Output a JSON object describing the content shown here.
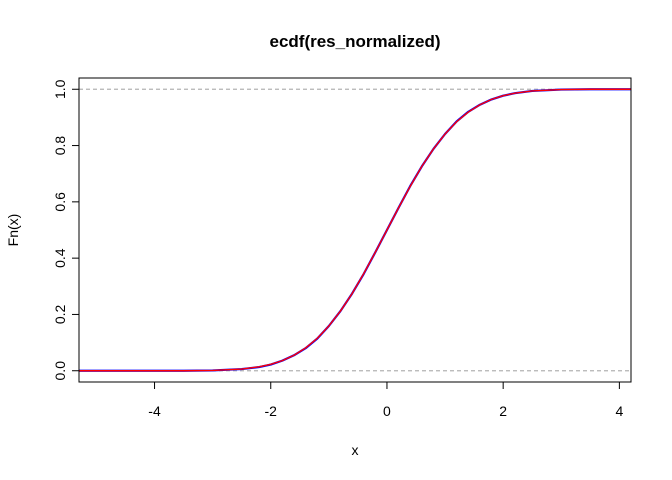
{
  "chart_data": {
    "type": "line",
    "title": "ecdf(res_normalized)",
    "xlabel": "x",
    "ylabel": "Fn(x)",
    "xlim": [
      -5.3,
      4.2
    ],
    "ylim": [
      -0.04,
      1.04
    ],
    "x_ticks": [
      -4,
      -2,
      0,
      2,
      4
    ],
    "y_ticks": [
      0.0,
      0.2,
      0.4,
      0.6,
      0.8,
      1.0
    ],
    "x_tick_labels": [
      "-4",
      "-2",
      "0",
      "2",
      "4"
    ],
    "y_tick_labels": [
      "0.0",
      "0.2",
      "0.4",
      "0.6",
      "0.8",
      "1.0"
    ],
    "reference_lines": [
      0,
      1
    ],
    "reference_line_color": "#b3b3b3",
    "grid": false,
    "series": [
      {
        "color": "#0000ff",
        "x": [
          -5.3,
          -3.5,
          -3.0,
          -2.5,
          -2.2,
          -2.0,
          -1.8,
          -1.6,
          -1.4,
          -1.2,
          -1.0,
          -0.8,
          -0.6,
          -0.4,
          -0.2,
          0.0,
          0.2,
          0.4,
          0.6,
          0.8,
          1.0,
          1.2,
          1.4,
          1.6,
          1.8,
          2.0,
          2.2,
          2.5,
          3.0,
          3.5,
          4.2
        ],
        "y": [
          0.0,
          0.0,
          0.001,
          0.006,
          0.013,
          0.022,
          0.036,
          0.055,
          0.08,
          0.114,
          0.159,
          0.212,
          0.274,
          0.344,
          0.421,
          0.5,
          0.579,
          0.656,
          0.726,
          0.788,
          0.841,
          0.886,
          0.92,
          0.945,
          0.964,
          0.977,
          0.986,
          0.994,
          0.999,
          1.0,
          1.0
        ]
      },
      {
        "color": "#ff0000",
        "x": [
          -5.3,
          -3.5,
          -3.0,
          -2.5,
          -2.2,
          -2.0,
          -1.8,
          -1.6,
          -1.4,
          -1.2,
          -1.0,
          -0.8,
          -0.6,
          -0.4,
          -0.2,
          0.0,
          0.2,
          0.4,
          0.6,
          0.8,
          1.0,
          1.2,
          1.4,
          1.6,
          1.8,
          2.0,
          2.2,
          2.5,
          3.0,
          3.5,
          4.2
        ],
        "y": [
          0.0,
          0.0,
          0.001,
          0.006,
          0.014,
          0.023,
          0.036,
          0.055,
          0.081,
          0.115,
          0.159,
          0.212,
          0.274,
          0.345,
          0.421,
          0.5,
          0.579,
          0.655,
          0.726,
          0.788,
          0.841,
          0.885,
          0.919,
          0.945,
          0.964,
          0.977,
          0.986,
          0.994,
          0.999,
          1.0,
          1.0
        ]
      }
    ]
  }
}
